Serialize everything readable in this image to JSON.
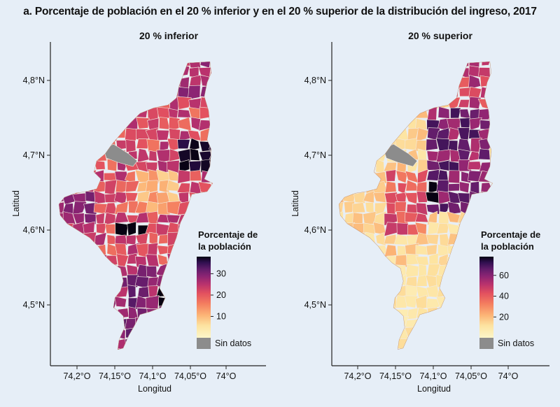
{
  "figure_title": "a. Porcentaje de población en el 20 % inferior y en el 20 % superior de la distribución del ingreso, 2017",
  "colors": {
    "background": "#e6eef7",
    "no_data": "#8c8c8c",
    "scale": [
      "#fcf6c9",
      "#fde3a0",
      "#fcb476",
      "#f47e5f",
      "#e2505f",
      "#b9326d",
      "#8c2473",
      "#5f1c6a",
      "#2f0f4f",
      "#070312"
    ]
  },
  "chart_data": [
    {
      "type": "choropleth",
      "title": "20 % inferior",
      "xlabel": "Longitud",
      "ylabel": "Latitud",
      "x_ticks": [
        "74,2°O",
        "74,15°O",
        "74,1°O",
        "74,05°O",
        "74°O"
      ],
      "y_ticks": [
        "4,8°N",
        "4,7°N",
        "4,6°N",
        "4,5°N"
      ],
      "legend_title": [
        "Porcentaje de",
        "la población"
      ],
      "legend_ticks": [
        "30",
        "20",
        "10"
      ],
      "legend_range": [
        0,
        38
      ],
      "no_data_label": "Sin datos"
    },
    {
      "type": "choropleth",
      "title": "20 % superior",
      "xlabel": "Longitud",
      "ylabel": "Latitud",
      "x_ticks": [
        "74,2°O",
        "74,15°O",
        "74,1°O",
        "74,05°O",
        "74°O"
      ],
      "y_ticks": [
        "4,8°N",
        "4,7°N",
        "4,6°N",
        "4,5°N"
      ],
      "legend_title": [
        "Porcentaje de",
        "la población"
      ],
      "legend_ticks": [
        "60",
        "40",
        "20"
      ],
      "legend_range": [
        0,
        78
      ],
      "no_data_label": "Sin datos"
    }
  ]
}
